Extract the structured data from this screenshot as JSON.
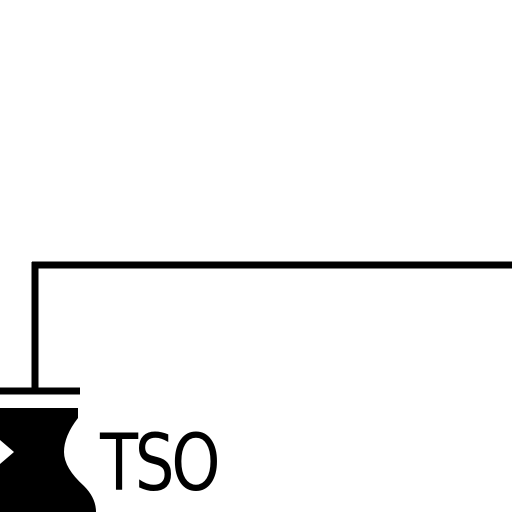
{
  "diagram": {
    "label": "TSO",
    "line_color": "#000000",
    "background_color": "#ffffff",
    "symbol": "transformer-node-icon"
  }
}
